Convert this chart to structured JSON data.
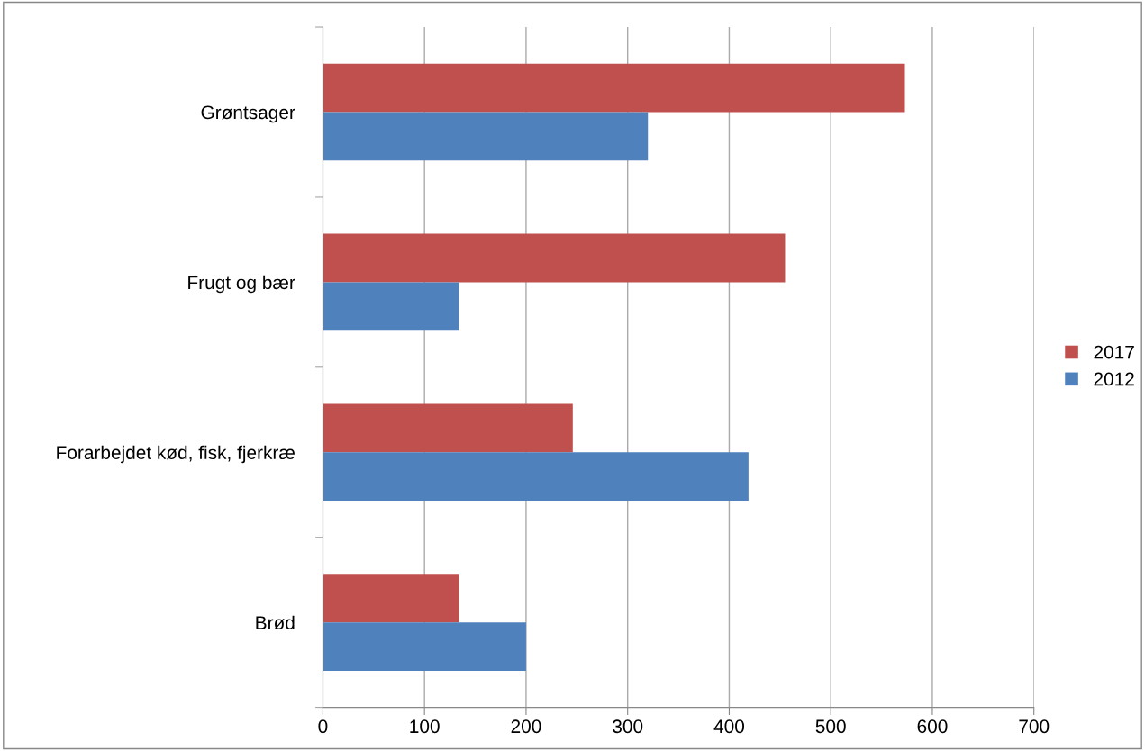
{
  "chart_data": {
    "type": "bar",
    "orientation": "horizontal",
    "categories": [
      "Grøntsager",
      "Frugt og bær",
      "Forarbejdet kød, fisk, fjerkræ",
      "Brød"
    ],
    "series": [
      {
        "name": "2017",
        "color": "#c0504d",
        "values": [
          573,
          455,
          246,
          134
        ]
      },
      {
        "name": "2012",
        "color": "#4f81bd",
        "values": [
          320,
          134,
          419,
          200
        ]
      }
    ],
    "xlim": [
      0,
      700
    ],
    "xticks": [
      0,
      100,
      200,
      300,
      400,
      500,
      600,
      700
    ],
    "grid": "x",
    "legend": "right"
  }
}
